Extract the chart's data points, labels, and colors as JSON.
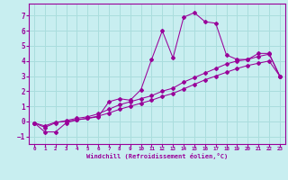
{
  "xlabel": "Windchill (Refroidissement éolien,°C)",
  "bg_color": "#c8eef0",
  "grid_color": "#aadddd",
  "line_color": "#990099",
  "xlim": [
    -0.5,
    23.5
  ],
  "ylim": [
    -1.5,
    7.8
  ],
  "xticks": [
    0,
    1,
    2,
    3,
    4,
    5,
    6,
    7,
    8,
    9,
    10,
    11,
    12,
    13,
    14,
    15,
    16,
    17,
    18,
    19,
    20,
    21,
    22,
    23
  ],
  "yticks": [
    -1,
    0,
    1,
    2,
    3,
    4,
    5,
    6,
    7
  ],
  "line1": {
    "x": [
      0,
      1,
      2,
      3,
      4,
      5,
      6,
      7,
      8,
      9,
      10,
      11,
      12,
      13,
      14,
      15,
      16,
      17,
      18,
      19,
      20,
      21,
      22,
      23
    ],
    "y": [
      -0.1,
      -0.7,
      -0.7,
      -0.1,
      0.1,
      0.2,
      0.3,
      1.3,
      1.5,
      1.4,
      2.1,
      4.1,
      6.0,
      4.2,
      6.9,
      7.2,
      6.6,
      6.5,
      4.4,
      4.1,
      4.1,
      4.5,
      4.5,
      3.0
    ]
  },
  "line2": {
    "x": [
      0,
      1,
      2,
      3,
      4,
      5,
      6,
      7,
      8,
      9,
      10,
      11,
      12,
      13,
      14,
      15,
      16,
      17,
      18,
      19,
      20,
      21,
      22,
      23
    ],
    "y": [
      -0.1,
      -0.4,
      -0.1,
      0.05,
      0.2,
      0.3,
      0.5,
      0.8,
      1.1,
      1.3,
      1.5,
      1.7,
      2.0,
      2.2,
      2.6,
      2.9,
      3.2,
      3.5,
      3.8,
      4.0,
      4.1,
      4.3,
      4.45,
      3.0
    ]
  },
  "line3": {
    "x": [
      0,
      1,
      2,
      3,
      4,
      5,
      6,
      7,
      8,
      9,
      10,
      11,
      12,
      13,
      14,
      15,
      16,
      17,
      18,
      19,
      20,
      21,
      22,
      23
    ],
    "y": [
      -0.1,
      -0.3,
      -0.05,
      0.0,
      0.1,
      0.2,
      0.35,
      0.55,
      0.8,
      1.0,
      1.2,
      1.4,
      1.65,
      1.85,
      2.15,
      2.45,
      2.75,
      3.0,
      3.25,
      3.5,
      3.7,
      3.85,
      4.0,
      3.0
    ]
  }
}
